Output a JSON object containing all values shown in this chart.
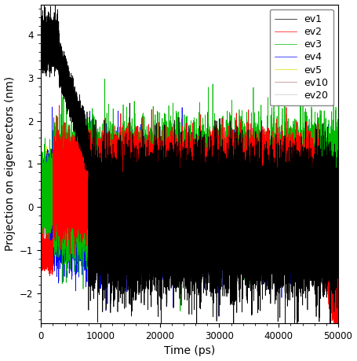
{
  "title": "",
  "xlabel": "Time (ps)",
  "ylabel": "Projection on eigenvectors (nm)",
  "xlim": [
    0,
    50000
  ],
  "ylim": [
    -2.7,
    4.7
  ],
  "yticks": [
    -2,
    -1,
    0,
    1,
    2,
    3,
    4
  ],
  "xticks": [
    0,
    10000,
    20000,
    30000,
    40000,
    50000
  ],
  "xtick_labels": [
    "0",
    "10000",
    "20000",
    "30000",
    "40000",
    "50000"
  ],
  "series": [
    {
      "label": "ev1",
      "color": "#000000",
      "seed": 1
    },
    {
      "label": "ev2",
      "color": "#ff0000",
      "seed": 2
    },
    {
      "label": "ev3",
      "color": "#00bb00",
      "seed": 3
    },
    {
      "label": "ev4",
      "color": "#0000ff",
      "seed": 4
    },
    {
      "label": "ev5",
      "color": "#dddd00",
      "seed": 5
    },
    {
      "label": "ev10",
      "color": "#b08080",
      "seed": 10
    },
    {
      "label": "ev20",
      "color": "#c8c8c8",
      "seed": 20
    }
  ],
  "legend_fontsize": 9,
  "axis_fontsize": 10,
  "tick_fontsize": 8.5,
  "linewidth": 0.5,
  "background_color": "#ffffff",
  "figsize": [
    4.55,
    4.59
  ],
  "dpi": 100
}
